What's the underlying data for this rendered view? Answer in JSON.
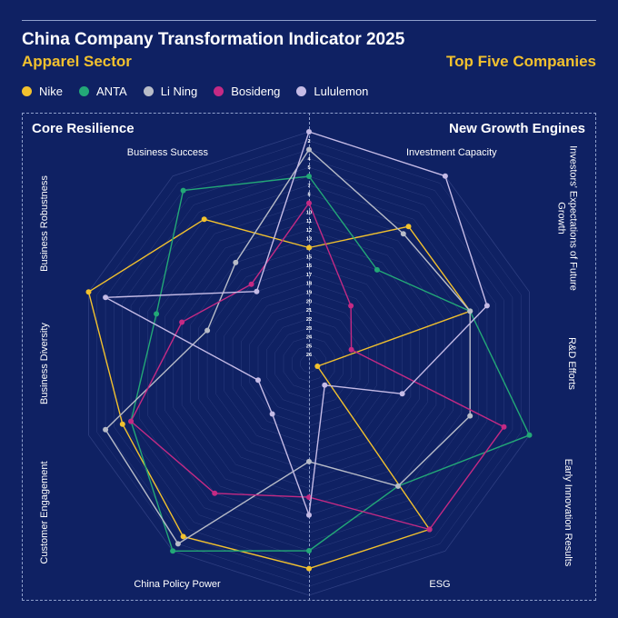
{
  "header": {
    "title": "China Company Transformation Indicator 2025",
    "subtitle_left": "Apparel Sector",
    "subtitle_right": "Top Five Companies"
  },
  "sections": {
    "left": "Core Resilience",
    "right": "New Growth Engines"
  },
  "colors": {
    "background": "#0f2163",
    "grid": "#3a4a8c",
    "Nike": "#f2c12e",
    "ANTA": "#23a877",
    "Li Ning": "#b8bcc8",
    "Bosideng": "#c42a84",
    "Lululemon": "#c5bbe6"
  },
  "chart_data": {
    "type": "radar",
    "axes": [
      "Business Success",
      "Investment Capacity",
      "Investors' Expectations of Future Growth",
      "R&D Efforts",
      "Early Innovation Results",
      "ESG",
      "China Policy Power",
      "Customer Engagement",
      "Business Diversity",
      "Business Robustness"
    ],
    "rank_scale": {
      "best": 1,
      "worst": 26,
      "ticks": [
        1,
        2,
        3,
        4,
        5,
        6,
        7,
        8,
        9,
        10,
        11,
        12,
        13,
        14,
        15,
        16,
        17,
        18,
        19,
        20,
        21,
        22,
        23,
        24,
        25,
        26
      ]
    },
    "series": [
      {
        "name": "Nike",
        "ranks": [
          14,
          8,
          8,
          26,
          4,
          4,
          3,
          5,
          1,
          7
        ]
      },
      {
        "name": "ANTA",
        "ranks": [
          6,
          14,
          8,
          1,
          10,
          6,
          1,
          6,
          9,
          3
        ]
      },
      {
        "name": "Li Ning",
        "ranks": [
          3,
          9,
          8,
          8,
          10,
          16,
          2,
          3,
          15,
          13
        ]
      },
      {
        "name": "Bosideng",
        "ranks": [
          9,
          19,
          22,
          4,
          4,
          12,
          9,
          6,
          12,
          16
        ]
      },
      {
        "name": "Lululemon",
        "ranks": [
          1,
          1,
          6,
          16,
          24,
          10,
          20,
          21,
          3,
          17
        ]
      }
    ]
  }
}
